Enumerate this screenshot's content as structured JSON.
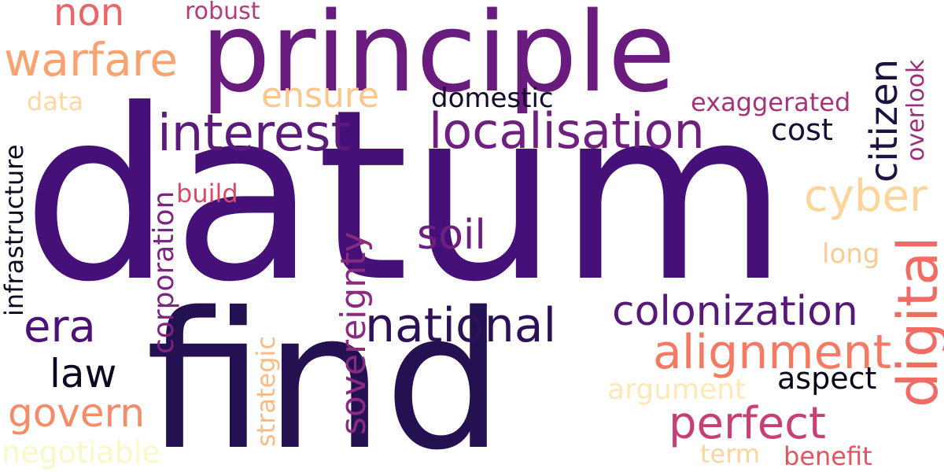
{
  "words": {
    "datum": "datum",
    "principle": "principle",
    "find": "find",
    "localisation": "localisation",
    "interest": "interest",
    "warfare": "warfare",
    "non": "non",
    "robust": "robust",
    "citizen": "citizen",
    "overlook": "overlook",
    "ensure": "ensure",
    "domestic": "domestic",
    "exaggerated": "exaggerated",
    "data": "data",
    "cost": "cost",
    "infrastructure": "infrastructure",
    "cyber": "cyber",
    "build": "build",
    "corporation": "corporation",
    "soil": "soil",
    "long": "long",
    "digital": "digital",
    "era": "era",
    "national": "national",
    "colonization": "colonization",
    "sovereignty": "sovereignty",
    "alignment": "alignment",
    "law": "law",
    "aspect": "aspect",
    "strategic": "strategic",
    "argument": "argument",
    "govern": "govern",
    "perfect": "perfect",
    "negotiable": "negotiable",
    "term": "term",
    "benefit": "benefit"
  },
  "colors": {
    "datum": "#451077",
    "principle": "#6a1b7e",
    "find": "#231151",
    "localisation": "#6f1f80",
    "interest": "#5c1b7a",
    "warfare": "#f9a272",
    "non": "#e8656a",
    "robust": "#b33c7a",
    "citizen": "#1f1140",
    "overlook": "#9b2f7b",
    "ensure": "#fcc68d",
    "domestic": "#130b2d",
    "exaggerated": "#a4347c",
    "data": "#fcd8a0",
    "cost": "#160e35",
    "infrastructure": "#0e0a22",
    "cyber": "#fdd49a",
    "build": "#d84968",
    "corporation": "#7e2581",
    "soil": "#6e1f80",
    "long": "#fcca94",
    "digital": "#ef6b63",
    "era": "#4a1279",
    "national": "#2c1159",
    "colonization": "#561977",
    "sovereignty": "#8a2a81",
    "alignment": "#f47a63",
    "law": "#0b0822",
    "aspect": "#060414",
    "strategic": "#fcba85",
    "argument": "#fde8b8",
    "govern": "#f58c68",
    "perfect": "#c73f74",
    "negotiable": "#fbf7c8",
    "term": "#fcd49e",
    "benefit": "#e2545f"
  }
}
